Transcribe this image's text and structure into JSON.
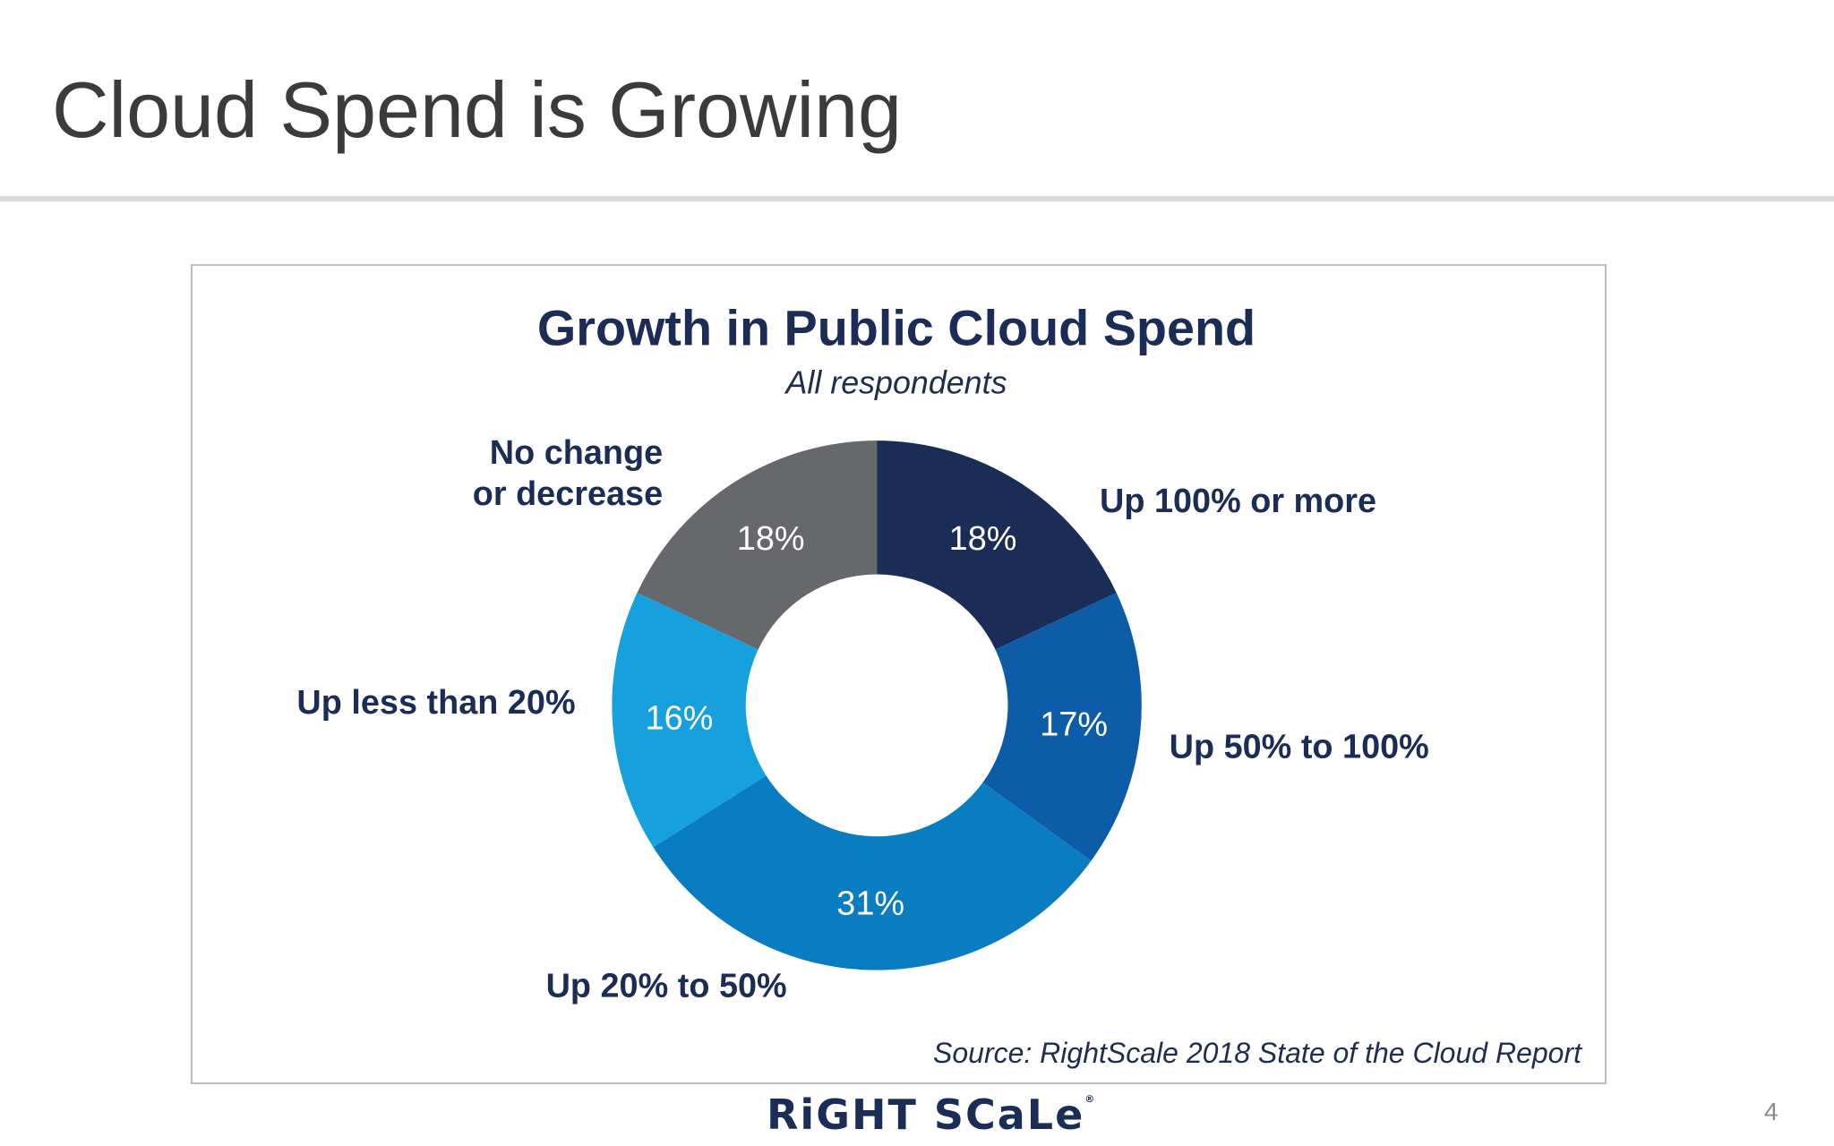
{
  "slide": {
    "title": "Cloud Spend is Growing",
    "page_number": "4",
    "logo_text": "RiGHT SCaLe",
    "logo_mark": "®"
  },
  "chart_data": {
    "type": "pie",
    "title": "Growth in Public Cloud Spend",
    "subtitle": "All respondents",
    "donut": true,
    "start_angle_deg": 0,
    "direction": "clockwise",
    "slices": [
      {
        "label": "Up 100% or more",
        "value": 18,
        "value_label": "18%",
        "color": "#1b2d57"
      },
      {
        "label": "Up 50% to 100%",
        "value": 17,
        "value_label": "17%",
        "color": "#0d5ca8"
      },
      {
        "label": "Up 20% to 50%",
        "value": 31,
        "value_label": "31%",
        "color": "#0a7cc1"
      },
      {
        "label": "Up less than 20%",
        "value": 16,
        "value_label": "16%",
        "color": "#16a1de"
      },
      {
        "label": "No change\nor decrease",
        "value": 18,
        "value_label": "18%",
        "color": "#67686b"
      }
    ],
    "source": "Source: RightScale 2018 State of the Cloud Report"
  }
}
